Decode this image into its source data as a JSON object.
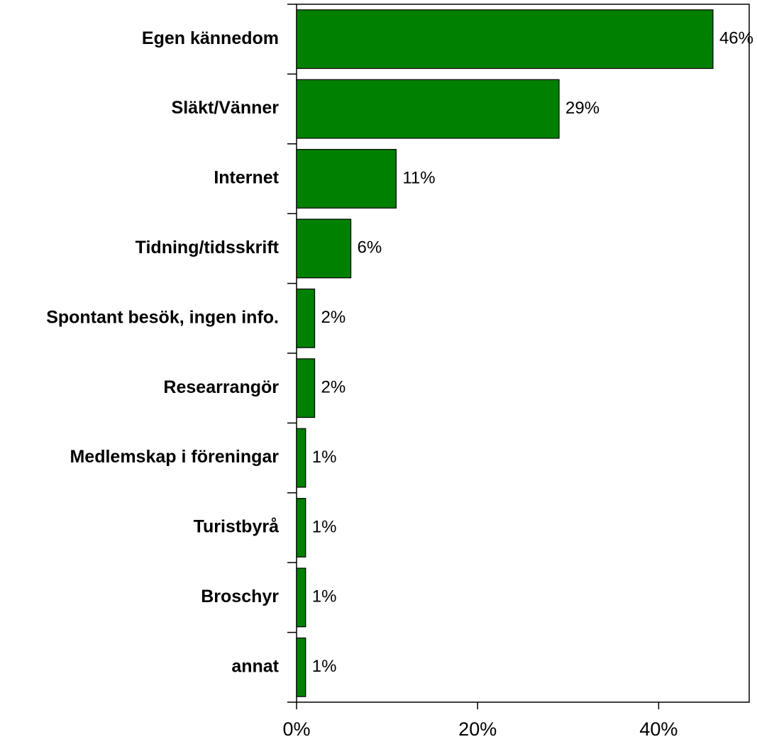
{
  "chart_data": {
    "type": "barh",
    "categories": [
      "Egen kännedom",
      "Släkt/Vänner",
      "Internet",
      "Tidning/tidsskrift",
      "Spontant besök, ingen info.",
      "Researrangör",
      "Medlemskap i föreningar",
      "Turistbyrå",
      "Broschyr",
      "annat"
    ],
    "values": [
      46,
      29,
      11,
      6,
      2,
      2,
      1,
      1,
      1,
      1
    ],
    "value_labels": [
      "46%",
      "29%",
      "11%",
      "6%",
      "2%",
      "2%",
      "1%",
      "1%",
      "1%",
      "1%"
    ],
    "color": "#008000",
    "xlim": [
      0,
      50
    ],
    "xticks": [
      {
        "value": 0,
        "label": "0%"
      },
      {
        "value": 20,
        "label": "20%"
      },
      {
        "value": 40,
        "label": "40%"
      }
    ]
  }
}
